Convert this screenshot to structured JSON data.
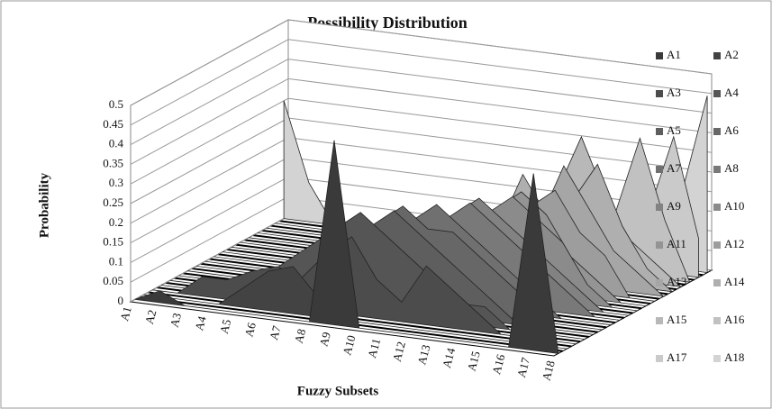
{
  "chart_data": {
    "type": "area3d",
    "title": "Possibility Distribution",
    "x_label": "Fuzzy Subsets",
    "y_label": "Probability",
    "categories": [
      "A1",
      "A2",
      "A3",
      "A4",
      "A5",
      "A6",
      "A7",
      "A8",
      "A9",
      "A10",
      "A11",
      "A12",
      "A13",
      "A14",
      "A15",
      "A16",
      "A17",
      "A18"
    ],
    "ylim": [
      0,
      0.5
    ],
    "yticks": [
      0,
      0.05,
      0.1,
      0.15,
      0.2,
      0.25,
      0.3,
      0.35,
      0.4,
      0.45,
      0.5
    ],
    "grid": true,
    "legend": "right",
    "series": [
      {
        "name": "A1",
        "color": "#3a3a3a",
        "values": [
          0,
          0.03,
          0,
          0,
          0,
          0,
          0,
          0,
          0.47,
          0,
          0,
          0,
          0,
          0,
          0,
          0,
          0.45,
          0
        ]
      },
      {
        "name": "A2",
        "color": "#434343",
        "values": [
          0,
          0,
          0,
          0,
          0.05,
          0.1,
          0.12,
          0.05,
          0,
          0,
          0,
          0,
          0,
          0,
          0,
          0,
          0,
          0
        ]
      },
      {
        "name": "A3",
        "color": "#4c4c4c",
        "values": [
          0,
          0,
          0.05,
          0.05,
          0.08,
          0.1,
          0.08,
          0.15,
          0.2,
          0.1,
          0.05,
          0.15,
          0.1,
          0.05,
          0,
          0,
          0,
          0
        ]
      },
      {
        "name": "A4",
        "color": "#555555",
        "values": [
          0,
          0,
          0,
          0.03,
          0.05,
          0.1,
          0.15,
          0.2,
          0.25,
          0.2,
          0.15,
          0.1,
          0.05,
          0.05,
          0,
          0,
          0,
          0
        ]
      },
      {
        "name": "A5",
        "color": "#5e5e5e",
        "values": [
          0,
          0,
          0,
          0,
          0.05,
          0.1,
          0.15,
          0.2,
          0.2,
          0.25,
          0.2,
          0.15,
          0.1,
          0.05,
          0,
          0,
          0,
          0
        ]
      },
      {
        "name": "A6",
        "color": "#676767",
        "values": [
          0,
          0,
          0,
          0,
          0,
          0.05,
          0.1,
          0.15,
          0.2,
          0.25,
          0.2,
          0.2,
          0.15,
          0.1,
          0.05,
          0,
          0,
          0
        ]
      },
      {
        "name": "A7",
        "color": "#707070",
        "values": [
          0,
          0,
          0,
          0,
          0,
          0.05,
          0.1,
          0.15,
          0.15,
          0.2,
          0.25,
          0.2,
          0.15,
          0.1,
          0.05,
          0,
          0,
          0
        ]
      },
      {
        "name": "A8",
        "color": "#797979",
        "values": [
          0,
          0,
          0,
          0,
          0,
          0,
          0.05,
          0.1,
          0.15,
          0.2,
          0.2,
          0.25,
          0.2,
          0.15,
          0.1,
          0.05,
          0,
          0
        ]
      },
      {
        "name": "A9",
        "color": "#828282",
        "values": [
          0,
          0,
          0,
          0,
          0,
          0,
          0.05,
          0.1,
          0.15,
          0.15,
          0.2,
          0.25,
          0.2,
          0.15,
          0.1,
          0.05,
          0,
          0
        ]
      },
      {
        "name": "A10",
        "color": "#8b8b8b",
        "values": [
          0,
          0,
          0,
          0,
          0,
          0,
          0,
          0.05,
          0.1,
          0.15,
          0.2,
          0.2,
          0.25,
          0.2,
          0.15,
          0.05,
          0,
          0
        ]
      },
      {
        "name": "A11",
        "color": "#949494",
        "values": [
          0,
          0,
          0,
          0,
          0,
          0,
          0,
          0.05,
          0.1,
          0.15,
          0.15,
          0.2,
          0.25,
          0.2,
          0.1,
          0.05,
          0,
          0
        ]
      },
      {
        "name": "A12",
        "color": "#9d9d9d",
        "values": [
          0,
          0,
          0,
          0,
          0,
          0,
          0,
          0,
          0.05,
          0.1,
          0.2,
          0.15,
          0.2,
          0.25,
          0.15,
          0.1,
          0,
          0
        ]
      },
      {
        "name": "A13",
        "color": "#a6a6a6",
        "values": [
          0,
          0,
          0,
          0,
          0,
          0,
          0,
          0,
          0.05,
          0.1,
          0.15,
          0.2,
          0.15,
          0.3,
          0.2,
          0.1,
          0.05,
          0
        ]
      },
      {
        "name": "A14",
        "color": "#afafaf",
        "values": [
          0,
          0,
          0,
          0,
          0,
          0,
          0,
          0,
          0,
          0.05,
          0.1,
          0.25,
          0.15,
          0.2,
          0.3,
          0.15,
          0.05,
          0
        ]
      },
      {
        "name": "A15",
        "color": "#b8b8b8",
        "values": [
          0,
          0,
          0,
          0,
          0,
          0,
          0,
          0,
          0,
          0.05,
          0.1,
          0.15,
          0.2,
          0.35,
          0.2,
          0.1,
          0.05,
          0
        ]
      },
      {
        "name": "A16",
        "color": "#c1c1c1",
        "values": [
          0,
          0,
          0,
          0,
          0,
          0,
          0,
          0,
          0,
          0,
          0.05,
          0.1,
          0.15,
          0.2,
          0.15,
          0.35,
          0.15,
          0
        ]
      },
      {
        "name": "A17",
        "color": "#cacaca",
        "values": [
          0,
          0,
          0,
          0,
          0,
          0,
          0,
          0,
          0,
          0,
          0,
          0.05,
          0.1,
          0.15,
          0.1,
          0.15,
          0.35,
          0.1
        ]
      },
      {
        "name": "A18",
        "color": "#d3d3d3",
        "values": [
          0.3,
          0.1,
          0,
          0,
          0,
          0,
          0,
          0,
          0,
          0,
          0,
          0,
          0.05,
          0.1,
          0.15,
          0.1,
          0.2,
          0.45
        ]
      }
    ]
  }
}
